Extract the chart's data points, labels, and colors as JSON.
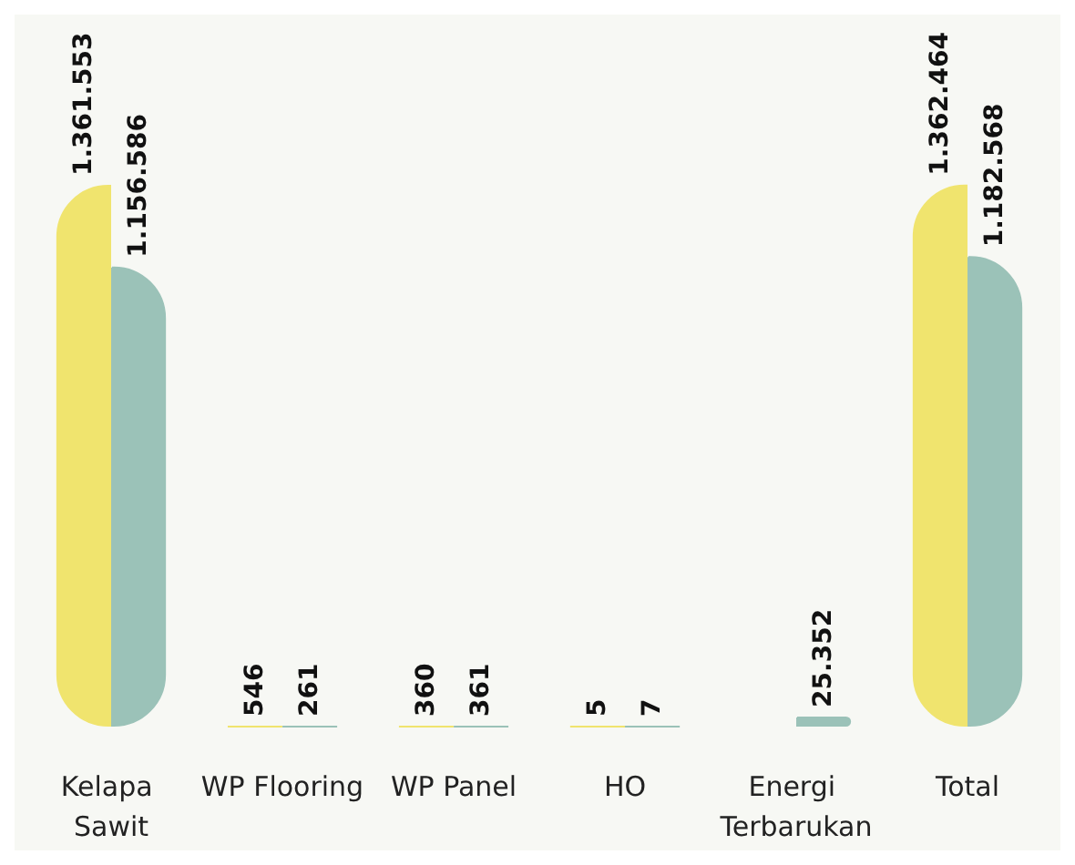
{
  "chart_data": {
    "type": "bar",
    "categories": [
      "Kelapa Sawit",
      "WP Flooring",
      "WP Panel",
      "HO",
      "Energi Terbarukan",
      "Total"
    ],
    "series": [
      {
        "color": "#f0e46e",
        "values": [
          1361553,
          546,
          360,
          5,
          null,
          1362464
        ],
        "value_labels": [
          "1.361.553",
          "546",
          "360",
          "5",
          null,
          "1.362.464"
        ]
      },
      {
        "color": "#9bc2b8",
        "values": [
          1156586,
          261,
          361,
          7,
          25352,
          1182568
        ],
        "value_labels": [
          "1.156.586",
          "261",
          "361",
          "7",
          "25.352",
          "1.182.568"
        ]
      }
    ],
    "grid": false
  }
}
